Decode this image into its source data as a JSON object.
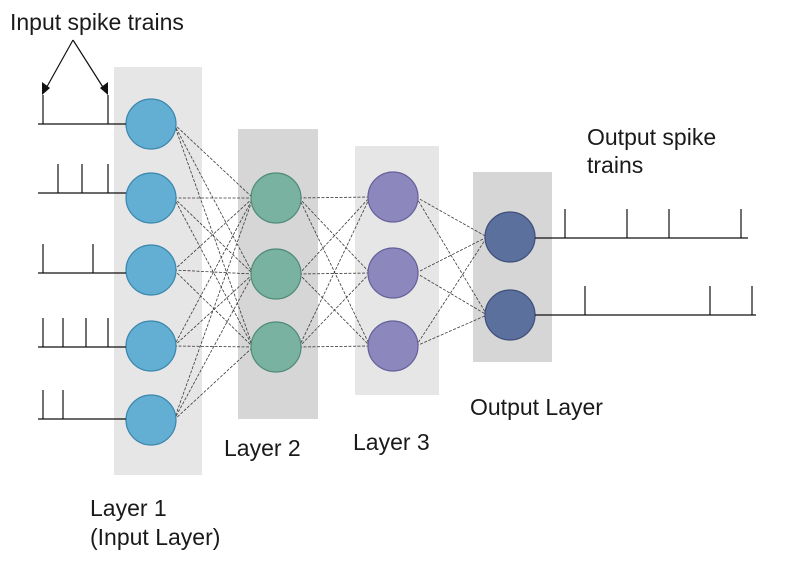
{
  "title_input": "Input spike trains",
  "title_output_line1": "Output spike",
  "title_output_line2": "trains",
  "layer_labels": {
    "layer1_line1": "Layer 1",
    "layer1_line2": "(Input Layer)",
    "layer2": "Layer 2",
    "layer3": "Layer 3",
    "output": "Output Layer"
  },
  "layers": [
    {
      "name": "layer-1",
      "neurons": 5,
      "color": "#63aed3",
      "stroke": "#3b86ad",
      "panel": "#e6e6e6"
    },
    {
      "name": "layer-2",
      "neurons": 3,
      "color": "#79b2a0",
      "stroke": "#4f8a78",
      "panel": "#d6d6d6"
    },
    {
      "name": "layer-3",
      "neurons": 3,
      "color": "#8c87bd",
      "stroke": "#656099",
      "panel": "#e6e6e6"
    },
    {
      "name": "output-layer",
      "neurons": 2,
      "color": "#5c709e",
      "stroke": "#3d4f79",
      "panel": "#d6d6d6"
    }
  ],
  "connectivity": "fully-connected",
  "input_spike_counts": [
    2,
    3,
    2,
    4,
    2
  ],
  "output_spike_counts": [
    5,
    4
  ]
}
